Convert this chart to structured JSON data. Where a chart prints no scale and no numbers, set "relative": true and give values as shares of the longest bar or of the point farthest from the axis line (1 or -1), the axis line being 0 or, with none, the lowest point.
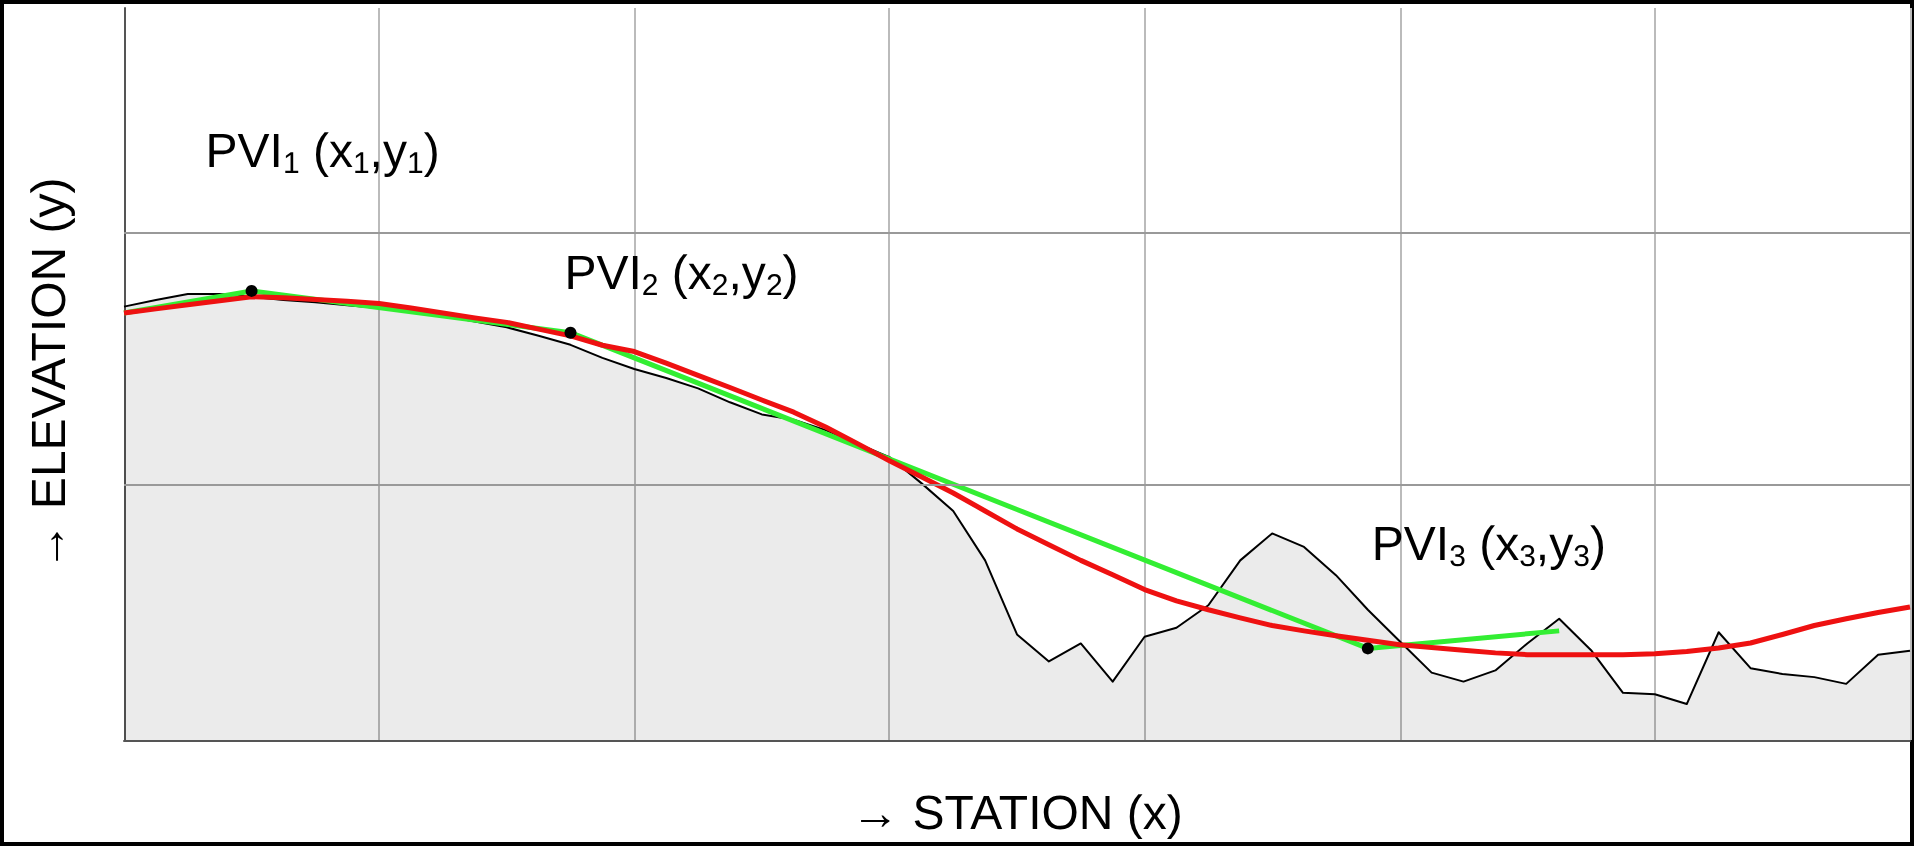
{
  "chart_data": {
    "type": "line",
    "relative": true,
    "xlabel": "→ STATION (x)",
    "ylabel": "→ ELEVATION (y)",
    "grid": "x",
    "ref_lines": [
      {
        "axis": "y",
        "value": 0.571,
        "color": "#999999"
      },
      {
        "axis": "y",
        "value": 1.133,
        "color": "#999999"
      }
    ],
    "categories": [
      null,
      null,
      null,
      null,
      null,
      null,
      null,
      null,
      null,
      null,
      null,
      null,
      null,
      null,
      null,
      null,
      null,
      null,
      null,
      null,
      null,
      null,
      null,
      null,
      null,
      null,
      null,
      null,
      null,
      null,
      null,
      null,
      null,
      null,
      null,
      null,
      null,
      null,
      null,
      null,
      null,
      null,
      null,
      null,
      null,
      null,
      null,
      null,
      null,
      null,
      null,
      null,
      null,
      null,
      null,
      null,
      null
    ],
    "series": [
      {
        "type": "area",
        "color": "#000000",
        "values": [
          0.965,
          0.98,
          0.993,
          0.993,
          0.987,
          0.98,
          0.975,
          0.968,
          0.962,
          0.955,
          0.945,
          0.932,
          0.919,
          0.9,
          0.88,
          0.851,
          0.826,
          0.806,
          0.783,
          0.752,
          0.725,
          0.713,
          0.69,
          0.66,
          0.63,
          0.572,
          0.51,
          0.4,
          0.235,
          0.175,
          0.215,
          0.13,
          0.23,
          0.25,
          0.3,
          0.4,
          0.46,
          0.43,
          0.367,
          0.29,
          0.22,
          0.15,
          0.13,
          0.155,
          0.215,
          0.27,
          0.2,
          0.105,
          0.102,
          0.08,
          0.24,
          0.16,
          0.147,
          0.14,
          0.125,
          0.19,
          0.199
        ]
      },
      {
        "color": "#33ee33",
        "values": [
          0.951,
          null,
          null,
          null,
          1.0,
          null,
          null,
          null,
          null,
          null,
          null,
          null,
          null,
          null,
          0.907,
          null,
          null,
          null,
          null,
          null,
          null,
          null,
          null,
          null,
          null,
          null,
          null,
          null,
          null,
          null,
          null,
          null,
          null,
          null,
          null,
          null,
          null,
          null,
          null,
          0.204,
          null,
          null,
          null,
          null,
          null,
          0.243,
          null,
          null,
          null,
          null,
          null,
          null,
          null,
          null,
          null,
          null,
          null
        ]
      },
      {
        "color": "#ee1111",
        "values": [
          0.951,
          0.96,
          0.969,
          0.978,
          0.987,
          0.985,
          0.981,
          0.977,
          0.972,
          0.962,
          0.951,
          0.94,
          0.93,
          0.915,
          0.9,
          0.879,
          0.865,
          0.839,
          0.812,
          0.785,
          0.757,
          0.73,
          0.697,
          0.66,
          0.622,
          0.586,
          0.55,
          0.51,
          0.47,
          0.435,
          0.4,
          0.368,
          0.335,
          0.31,
          0.29,
          0.272,
          0.255,
          0.243,
          0.232,
          0.222,
          0.212,
          0.206,
          0.2,
          0.194,
          0.19,
          0.19,
          0.19,
          0.19,
          0.192,
          0.197,
          0.205,
          0.216,
          0.235,
          0.255,
          0.27,
          0.284,
          0.296
        ]
      }
    ],
    "annotations": [
      "PVI$_{1}$ (x$_{1}$,y$_{1}$)",
      "PVI$_{2}$ (x$_{2}$,y$_{2}$)",
      "PVI$_{3}$ (x$_{3}$,y$_{3}$)"
    ]
  }
}
